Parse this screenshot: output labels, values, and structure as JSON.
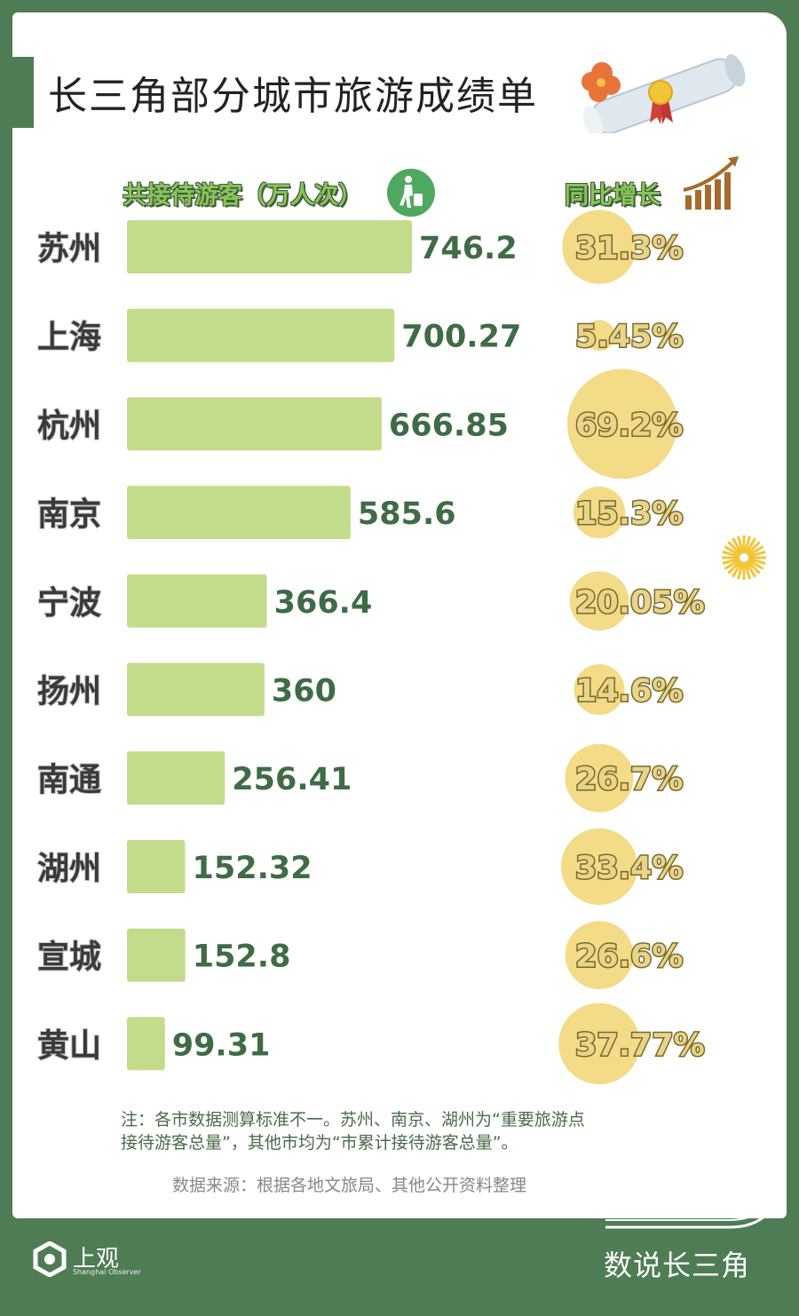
{
  "title": "长三角部分城市旅游成绩单",
  "headers": {
    "visitors": "共接待游客（万人次）",
    "growth": "同比增长"
  },
  "chart_data": {
    "type": "bar",
    "categories": [
      "苏州",
      "上海",
      "杭州",
      "南京",
      "宁波",
      "扬州",
      "南通",
      "湖州",
      "宣城",
      "黄山"
    ],
    "series": [
      {
        "name": "共接待游客（万人次）",
        "values": [
          746.2,
          700.27,
          666.85,
          585.6,
          366.4,
          360,
          256.41,
          152.32,
          152.8,
          99.31
        ]
      },
      {
        "name": "同比增长",
        "values": [
          31.3,
          5.45,
          69.2,
          15.3,
          20.05,
          14.6,
          26.7,
          33.4,
          26.6,
          37.77
        ]
      }
    ],
    "value_labels": [
      "746.2",
      "700.27",
      "666.85",
      "585.6",
      "366.4",
      "360",
      "256.41",
      "152.32",
      "152.8",
      "99.31"
    ],
    "growth_labels": [
      "31.3%",
      "5.45%",
      "69.2%",
      "15.3%",
      "20.05%",
      "14.6%",
      "26.7%",
      "33.4%",
      "26.6%",
      "37.77%"
    ]
  },
  "note_line1": "注：各市数据测算标准不一。苏州、南京、湖州为“重要旅游点",
  "note_line2": "接待游客总量”，其他市均为“市累计接待游客总量”。",
  "source": "数据来源：根据各地文旅局、其他公开资料整理",
  "brand": "数说长三角",
  "logo": {
    "name": "上观",
    "subtitle": "Shanghai Observer"
  },
  "colors": {
    "frame": "#4e7d55",
    "bar": "#c3dc8c",
    "value_text": "#3f6b45",
    "bubble": "#f3db87"
  }
}
